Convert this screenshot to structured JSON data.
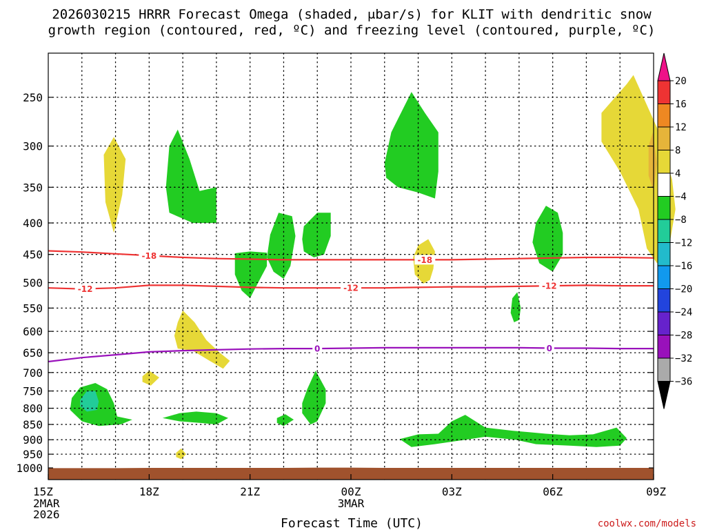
{
  "chart_data": {
    "type": "heatmap",
    "title_lines": [
      "2026030215 HRRR Forecast Omega (shaded, μbar/s) for KLIT with dendritic snow",
      "growth region (contoured, red, ºC) and freezing level (contoured, purple, ºC)"
    ],
    "xlabel": "Forecast Time (UTC)",
    "x_ticks": [
      {
        "hour": 0,
        "label": "15Z",
        "sub": [
          "2MAR",
          "2026"
        ]
      },
      {
        "hour": 3,
        "label": "18Z",
        "sub": []
      },
      {
        "hour": 6,
        "label": "21Z",
        "sub": []
      },
      {
        "hour": 9,
        "label": "00Z",
        "sub": [
          "3MAR"
        ]
      },
      {
        "hour": 12,
        "label": "03Z",
        "sub": []
      },
      {
        "hour": 15,
        "label": "06Z",
        "sub": []
      },
      {
        "hour": 18,
        "label": "09Z",
        "sub": []
      }
    ],
    "x_range_hours": [
      0,
      18
    ],
    "y_ticks_hpa": [
      250,
      300,
      350,
      400,
      450,
      500,
      550,
      600,
      650,
      700,
      750,
      800,
      850,
      900,
      950,
      1000
    ],
    "y_range_hpa": [
      200,
      1010
    ],
    "surface_hpa": [
      1001,
      1001,
      1001,
      1000,
      1000,
      1000,
      1000,
      1000,
      999,
      999,
      1000,
      1000,
      1000,
      1000,
      1000,
      1000,
      1000,
      1000,
      1000
    ],
    "colorbar": {
      "levels": [
        "20",
        "16",
        "12",
        "8",
        "4",
        "−4",
        "−8",
        "−12",
        "−16",
        "−20",
        "−24",
        "−28",
        "−32",
        "−36"
      ],
      "colors": [
        "#ee1188",
        "#ee3333",
        "#ee8822",
        "#e6b43a",
        "#e6d837",
        "#ffffff",
        "#22cc22",
        "#22cc99",
        "#22bbcc",
        "#1199ee",
        "#2244dd",
        "#6622cc",
        "#9911bb",
        "#aaaaaa",
        "#000000"
      ]
    },
    "omega_areas": [
      {
        "color": "#e6d837",
        "pts": [
          [
            1.65,
            310
          ],
          [
            1.95,
            290
          ],
          [
            2.3,
            315
          ],
          [
            2.2,
            360
          ],
          [
            1.95,
            415
          ],
          [
            1.7,
            370
          ]
        ]
      },
      {
        "color": "#22cc22",
        "pts": [
          [
            3.5,
            350
          ],
          [
            3.6,
            300
          ],
          [
            3.85,
            282
          ],
          [
            4.2,
            315
          ],
          [
            4.5,
            355
          ],
          [
            5.0,
            350
          ],
          [
            5.0,
            400
          ],
          [
            4.3,
            400
          ],
          [
            3.6,
            385
          ]
        ]
      },
      {
        "color": "#22cc22",
        "pts": [
          [
            6.85,
            385
          ],
          [
            7.25,
            390
          ],
          [
            7.35,
            420
          ],
          [
            7.2,
            470
          ],
          [
            7.0,
            493
          ],
          [
            6.7,
            480
          ],
          [
            6.5,
            455
          ],
          [
            6.6,
            418
          ]
        ]
      },
      {
        "color": "#22cc22",
        "pts": [
          [
            7.6,
            405
          ],
          [
            8.0,
            385
          ],
          [
            8.4,
            385
          ],
          [
            8.4,
            420
          ],
          [
            8.2,
            450
          ],
          [
            7.9,
            455
          ],
          [
            7.6,
            445
          ],
          [
            7.55,
            425
          ]
        ]
      },
      {
        "color": "#22cc22",
        "pts": [
          [
            5.55,
            448
          ],
          [
            6.0,
            445
          ],
          [
            6.5,
            447
          ],
          [
            6.5,
            470
          ],
          [
            6.2,
            505
          ],
          [
            6.0,
            530
          ],
          [
            5.75,
            515
          ],
          [
            5.55,
            485
          ]
        ]
      },
      {
        "color": "#22cc22",
        "pts": [
          [
            10.0,
            320
          ],
          [
            10.2,
            285
          ],
          [
            10.8,
            245
          ],
          [
            11.2,
            265
          ],
          [
            11.6,
            285
          ],
          [
            11.6,
            330
          ],
          [
            11.5,
            365
          ],
          [
            11.0,
            357
          ],
          [
            10.4,
            350
          ],
          [
            10.05,
            338
          ]
        ]
      },
      {
        "color": "#e6d837",
        "pts": [
          [
            11.0,
            435
          ],
          [
            11.3,
            425
          ],
          [
            11.5,
            445
          ],
          [
            11.45,
            475
          ],
          [
            11.35,
            495
          ],
          [
            11.15,
            502
          ],
          [
            10.9,
            485
          ],
          [
            10.85,
            455
          ]
        ]
      },
      {
        "color": "#22cc22",
        "pts": [
          [
            14.5,
            400
          ],
          [
            14.8,
            375
          ],
          [
            15.15,
            385
          ],
          [
            15.3,
            415
          ],
          [
            15.3,
            450
          ],
          [
            15.0,
            480
          ],
          [
            14.6,
            465
          ],
          [
            14.4,
            430
          ]
        ]
      },
      {
        "color": "#22cc22",
        "pts": [
          [
            13.8,
            530
          ],
          [
            13.95,
            518
          ],
          [
            14.05,
            550
          ],
          [
            14.0,
            575
          ],
          [
            13.85,
            580
          ],
          [
            13.75,
            560
          ]
        ]
      },
      {
        "color": "#e6d837",
        "pts": [
          [
            16.45,
            265
          ],
          [
            17.2,
            238
          ],
          [
            17.4,
            230
          ],
          [
            18.1,
            280
          ],
          [
            18.55,
            340
          ],
          [
            18.65,
            380
          ],
          [
            18.5,
            425
          ],
          [
            18.1,
            465
          ],
          [
            17.8,
            440
          ],
          [
            17.55,
            380
          ],
          [
            17.0,
            330
          ],
          [
            16.45,
            295
          ]
        ]
      },
      {
        "color": "#e6b43a",
        "pts": [
          [
            17.85,
            300
          ],
          [
            17.98,
            285
          ],
          [
            18.1,
            320
          ],
          [
            18.0,
            355
          ],
          [
            17.85,
            335
          ]
        ]
      },
      {
        "color": "#e6d837",
        "pts": [
          [
            3.85,
            580
          ],
          [
            4.0,
            555
          ],
          [
            4.35,
            580
          ],
          [
            4.7,
            620
          ],
          [
            5.1,
            650
          ],
          [
            5.4,
            670
          ],
          [
            5.2,
            690
          ],
          [
            4.8,
            670
          ],
          [
            4.3,
            645
          ],
          [
            3.85,
            640
          ],
          [
            3.75,
            610
          ]
        ]
      },
      {
        "color": "#e6d837",
        "pts": [
          [
            2.8,
            710
          ],
          [
            3.0,
            695
          ],
          [
            3.3,
            713
          ],
          [
            3.05,
            735
          ],
          [
            2.8,
            725
          ]
        ]
      },
      {
        "color": "#22cc22",
        "pts": [
          [
            0.7,
            770
          ],
          [
            0.95,
            740
          ],
          [
            1.4,
            728
          ],
          [
            1.75,
            745
          ],
          [
            1.95,
            785
          ],
          [
            2.05,
            825
          ],
          [
            2.5,
            835
          ],
          [
            2.15,
            850
          ],
          [
            1.5,
            855
          ],
          [
            1.0,
            840
          ],
          [
            0.65,
            805
          ]
        ]
      },
      {
        "color": "#22cc99",
        "pts": [
          [
            0.95,
            775
          ],
          [
            1.15,
            750
          ],
          [
            1.4,
            750
          ],
          [
            1.5,
            780
          ],
          [
            1.45,
            805
          ],
          [
            1.15,
            810
          ],
          [
            0.95,
            795
          ]
        ]
      },
      {
        "color": "#22cc22",
        "pts": [
          [
            3.4,
            830
          ],
          [
            3.9,
            815
          ],
          [
            4.4,
            810
          ],
          [
            5.0,
            815
          ],
          [
            5.35,
            830
          ],
          [
            5.0,
            850
          ],
          [
            4.5,
            845
          ],
          [
            3.9,
            840
          ]
        ]
      },
      {
        "color": "#22cc22",
        "pts": [
          [
            6.8,
            830
          ],
          [
            7.05,
            818
          ],
          [
            7.3,
            835
          ],
          [
            7.0,
            855
          ],
          [
            6.8,
            845
          ]
        ]
      },
      {
        "color": "#22cc22",
        "pts": [
          [
            7.55,
            785
          ],
          [
            7.7,
            745
          ],
          [
            7.95,
            695
          ],
          [
            8.25,
            745
          ],
          [
            8.25,
            785
          ],
          [
            8.0,
            840
          ],
          [
            7.8,
            850
          ],
          [
            7.55,
            815
          ]
        ]
      },
      {
        "color": "#22cc22",
        "pts": [
          [
            10.45,
            898
          ],
          [
            11.0,
            882
          ],
          [
            11.6,
            880
          ],
          [
            12.0,
            840
          ],
          [
            12.4,
            820
          ],
          [
            13.0,
            860
          ],
          [
            13.8,
            870
          ],
          [
            14.8,
            880
          ],
          [
            15.5,
            885
          ],
          [
            16.2,
            882
          ],
          [
            16.9,
            860
          ],
          [
            17.2,
            895
          ],
          [
            17.0,
            920
          ],
          [
            16.3,
            925
          ],
          [
            15.5,
            920
          ],
          [
            14.5,
            915
          ],
          [
            13.9,
            900
          ],
          [
            13.0,
            890
          ],
          [
            12.4,
            900
          ],
          [
            11.5,
            915
          ],
          [
            10.8,
            925
          ]
        ]
      },
      {
        "color": "#e6d837",
        "pts": [
          [
            3.8,
            945
          ],
          [
            3.95,
            930
          ],
          [
            4.1,
            950
          ],
          [
            3.95,
            968
          ],
          [
            3.8,
            960
          ]
        ]
      }
    ],
    "contours": [
      {
        "label": "-18",
        "color": "#ee3333",
        "x": [
          0,
          1,
          2,
          3,
          4,
          5,
          6,
          7,
          8,
          9,
          10,
          11,
          12,
          13,
          14,
          15,
          16,
          17,
          18
        ],
        "hpa": [
          444,
          446,
          449,
          452,
          455,
          457,
          458,
          459,
          459,
          459,
          459,
          459,
          459,
          458,
          457,
          456,
          455,
          455,
          456
        ],
        "label_x": [
          3,
          11.2
        ]
      },
      {
        "label": "-12",
        "color": "#ee3333",
        "x": [
          0,
          1,
          2,
          3,
          4,
          5,
          6,
          7,
          8,
          9,
          10,
          11,
          12,
          13,
          14,
          15,
          16,
          17,
          18
        ],
        "hpa": [
          510,
          512,
          510,
          505,
          505,
          507,
          509,
          510,
          510,
          510,
          510,
          509,
          508,
          508,
          507,
          506,
          505,
          506,
          506
        ],
        "label_x": [
          1.1,
          9.0,
          14.9
        ]
      },
      {
        "label": "0",
        "color": "#9911bb",
        "x": [
          0,
          1,
          2,
          3,
          4,
          5,
          6,
          7,
          8,
          9,
          10,
          11,
          12,
          13,
          14,
          15,
          16,
          17,
          18
        ],
        "hpa": [
          672,
          662,
          655,
          648,
          645,
          643,
          641,
          640,
          640,
          639,
          638,
          638,
          638,
          638,
          638,
          639,
          639,
          640,
          640
        ],
        "label_x": [
          8.0,
          14.9
        ]
      }
    ]
  },
  "credit": "coolwx.com/models"
}
